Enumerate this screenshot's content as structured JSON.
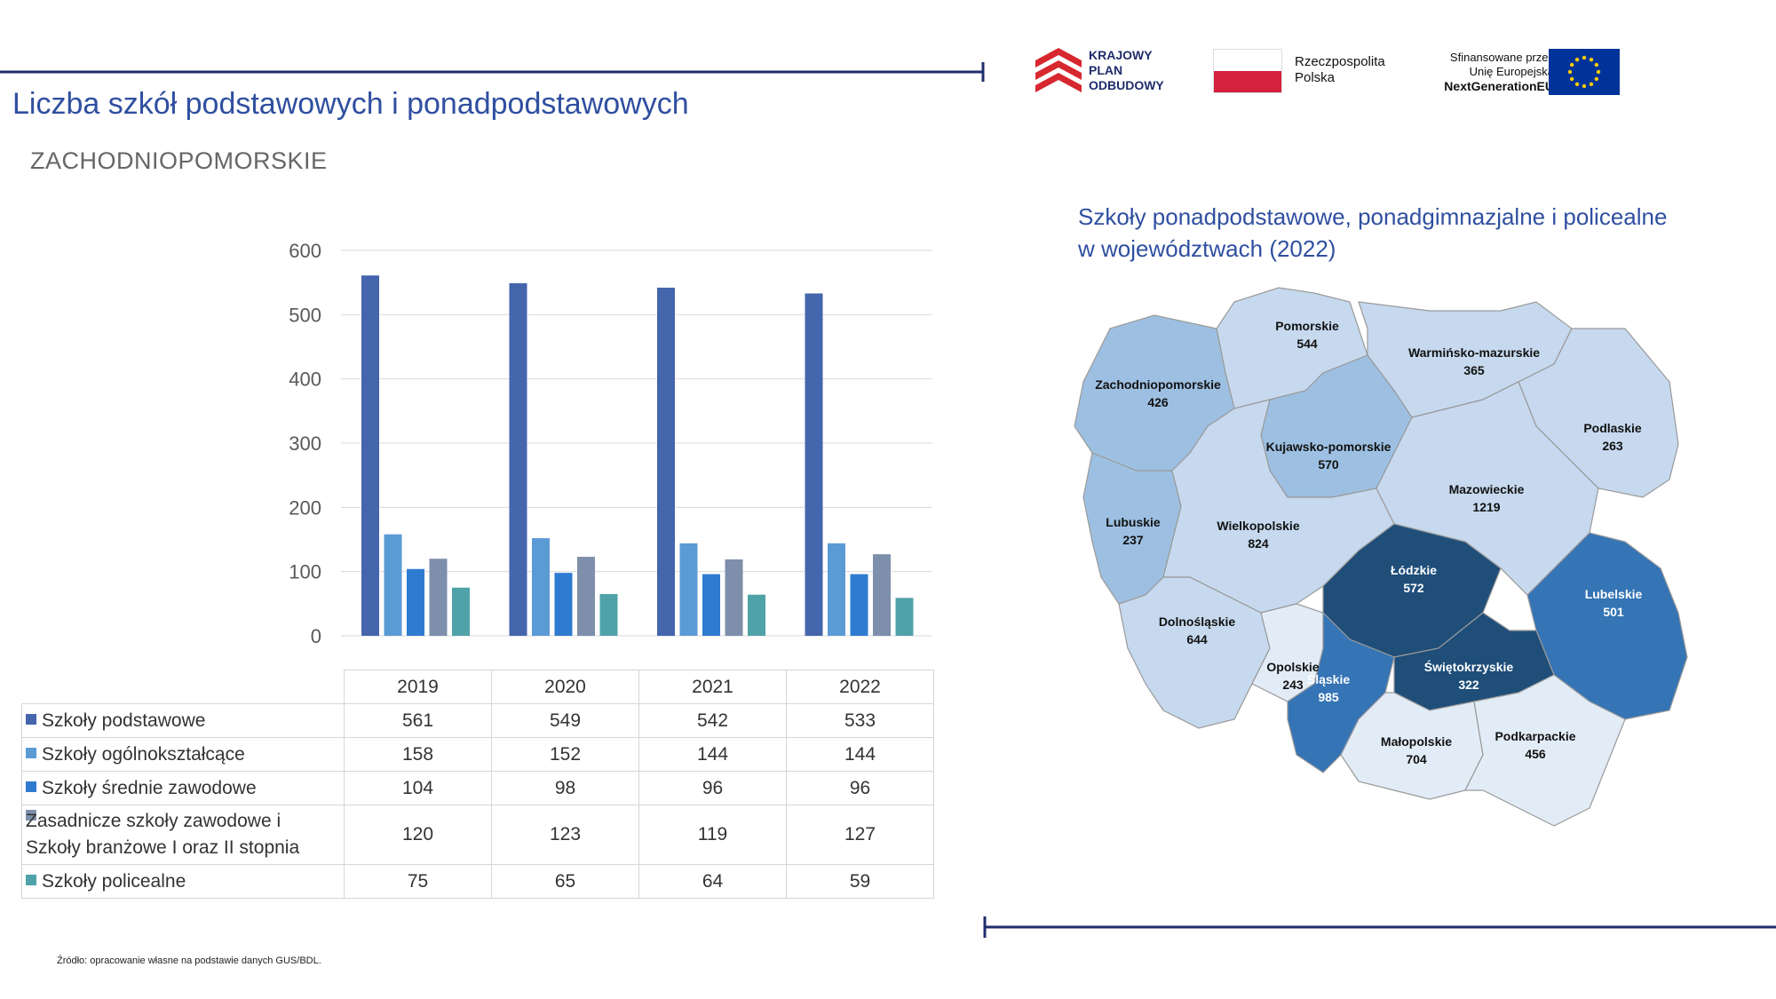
{
  "header": {
    "title": "Liczba szkół podstawowych i ponadpodstawowych",
    "region": "ZACHODNIOPOMORSKIE"
  },
  "logos": {
    "kpo": [
      "KRAJOWY",
      "PLAN",
      "ODBUDOWY"
    ],
    "rp": [
      "Rzeczpospolita",
      "Polska"
    ],
    "eu": [
      "Sfinansowane przez",
      "Unię Europejską",
      "NextGenerationEU"
    ]
  },
  "chart_data": {
    "type": "bar",
    "categories": [
      "2019",
      "2020",
      "2021",
      "2022"
    ],
    "ylim": [
      0,
      600
    ],
    "yticks": [
      0,
      100,
      200,
      300,
      400,
      500,
      600
    ],
    "grid": true,
    "legend": "table-below",
    "series": [
      {
        "name": "Szkoły podstawowe",
        "values": [
          561,
          549,
          542,
          533
        ],
        "color": "#4565ad"
      },
      {
        "name": "Szkoły ogólnokształcące",
        "values": [
          158,
          152,
          144,
          144
        ],
        "color": "#5b9bd5"
      },
      {
        "name": "Szkoły średnie zawodowe",
        "values": [
          104,
          98,
          96,
          96
        ],
        "color": "#2e7bd1"
      },
      {
        "name": "Zasadnicze szkoły zawodowe i Szkoły branżowe I oraz II stopnia",
        "name_lines": [
          "Zasadnicze szkoły zawodowe i",
          "Szkoły branżowe I oraz II stopnia"
        ],
        "values": [
          120,
          123,
          119,
          127
        ],
        "color": "#7d8fab"
      },
      {
        "name": "Szkoły policealne",
        "values": [
          75,
          65,
          64,
          59
        ],
        "color": "#4fa3a8"
      }
    ]
  },
  "map": {
    "title_lines": [
      "Szkoły ponadpodstawowe, ponadgimnazjalne i policealne",
      "w województwach (2022)"
    ],
    "regions": [
      {
        "name": "Pomorskie",
        "value": "544",
        "color": "#c6d9ee"
      },
      {
        "name": "Warmińsko-mazurskie",
        "value": "365",
        "color": "#c6d9ee"
      },
      {
        "name": "Zachodniopomorskie",
        "value": "426",
        "color": "#9dc0e2"
      },
      {
        "name": "Podlaskie",
        "value": "263",
        "color": "#c6d9ee"
      },
      {
        "name": "Kujawsko-pomorskie",
        "value": "570",
        "color": "#9dc0e2"
      },
      {
        "name": "Mazowieckie",
        "value": "1219",
        "color": "#c6d9ee"
      },
      {
        "name": "Lubuskie",
        "value": "237",
        "color": "#9dc0e2"
      },
      {
        "name": "Wielkopolskie",
        "value": "824",
        "color": "#c6d9ee"
      },
      {
        "name": "Łódzkie",
        "value": "572",
        "color": "#1f4e79"
      },
      {
        "name": "Lubelskie",
        "value": "501",
        "color": "#3574b5"
      },
      {
        "name": "Dolnośląskie",
        "value": "644",
        "color": "#c6d9ee"
      },
      {
        "name": "Opolskie",
        "value": "243",
        "color": "#e2ecf7"
      },
      {
        "name": "Śląskie",
        "value": "985",
        "color": "#3574b5"
      },
      {
        "name": "Świętokrzyskie",
        "value": "322",
        "color": "#1f4e79"
      },
      {
        "name": "Małopolskie",
        "value": "704",
        "color": "#e2ecf7"
      },
      {
        "name": "Podkarpackie",
        "value": "456",
        "color": "#e2ecf7"
      }
    ]
  },
  "footer": {
    "source": "Źródło: opracowanie własne na podstawie danych GUS/BDL."
  },
  "colors": {
    "title": "#2f4fa0",
    "rule": "#1f2d6b"
  }
}
